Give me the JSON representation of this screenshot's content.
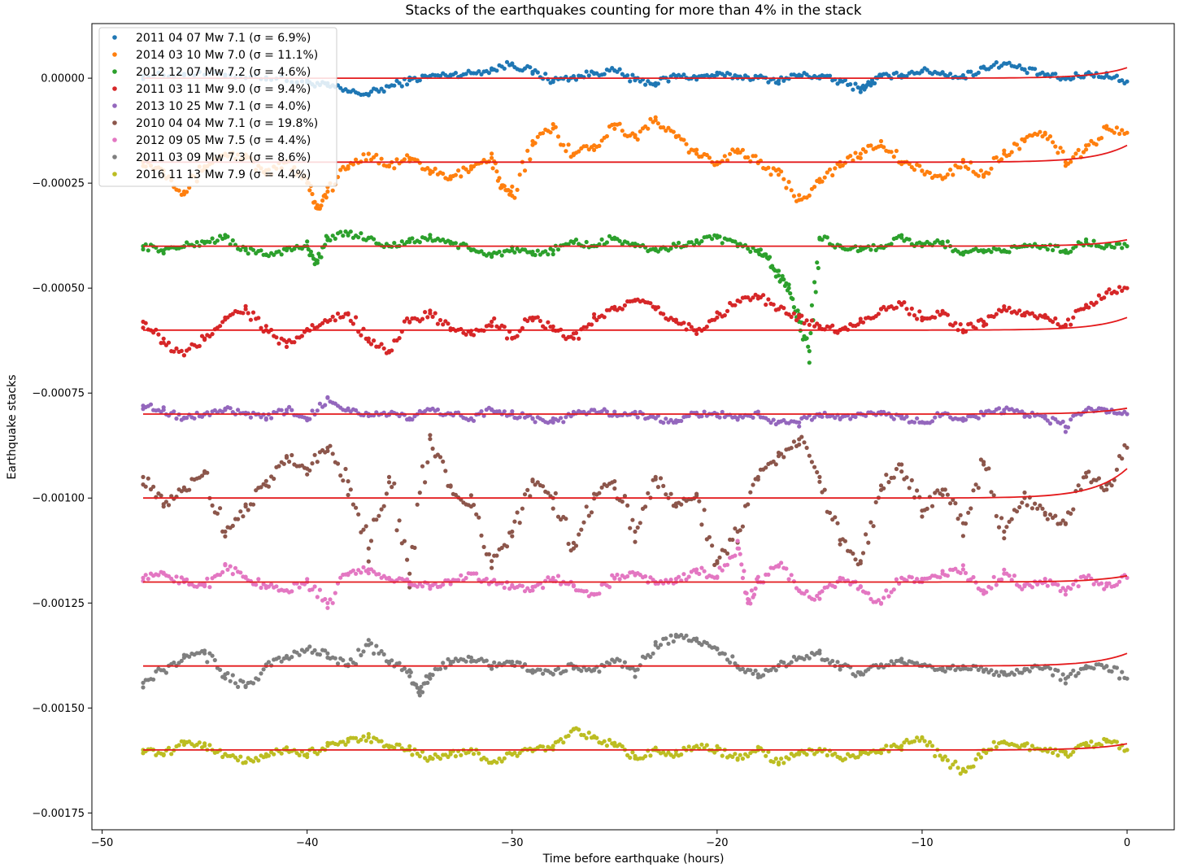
{
  "chart_data": {
    "type": "scatter",
    "title": "Stacks of the earthquakes counting for more than 4% in the stack",
    "xlabel": "Time before earthquake (hours)",
    "ylabel": "Earthquake stacks",
    "xlim": [
      -50.5,
      2.3
    ],
    "ylim": [
      -0.00179,
      0.00013
    ],
    "x_ticks": [
      -50,
      -40,
      -30,
      -20,
      -10,
      0
    ],
    "x_tick_labels": [
      "−50",
      "−40",
      "−30",
      "−20",
      "−10",
      "0"
    ],
    "y_ticks": [
      0,
      -0.00025,
      -0.0005,
      -0.00075,
      -0.001,
      -0.00125,
      -0.0015,
      -0.00175
    ],
    "y_tick_labels": [
      "0.00000",
      "−0.00025",
      "−0.00050",
      "−0.00075",
      "−0.00100",
      "−0.00125",
      "−0.00150",
      "−0.00175"
    ],
    "grid": false,
    "legend_position": "top-left",
    "fit_color": "#e41a1c",
    "series": [
      {
        "name": "2011 04 07 Mw 7.1 (σ = 6.9%)",
        "color": "#1f77b4",
        "baseline": 0,
        "fit_end": 2.5e-05,
        "x": [
          -48,
          -46,
          -44,
          -42,
          -40,
          -39,
          -38,
          -37,
          -36,
          -35,
          -34,
          -33,
          -32,
          -31,
          -30,
          -29,
          -28,
          -27,
          -26,
          -25,
          -24,
          -23,
          -22,
          -21,
          -20,
          -19,
          -18,
          -17,
          -16,
          -15,
          -14,
          -13,
          -12.5,
          -12,
          -11,
          -10,
          -9,
          -8,
          -7,
          -6,
          -5,
          -4,
          -3,
          -2,
          -1,
          0
        ],
        "y": [
          5e-06,
          1e-05,
          8e-06,
          2e-06,
          -1e-05,
          -1.8e-05,
          -3.2e-05,
          -3.8e-05,
          -2e-05,
          -5e-06,
          5e-06,
          8e-06,
          1.2e-05,
          2e-05,
          3.5e-05,
          1.5e-05,
          -5e-06,
          2e-06,
          1.2e-05,
          1.8e-05,
          -5e-06,
          -1.2e-05,
          5e-06,
          2e-06,
          8e-06,
          4e-06,
          1e-06,
          -6e-06,
          8e-06,
          4e-06,
          -8e-06,
          -2.5e-05,
          -1.2e-05,
          4e-06,
          8e-06,
          1.8e-05,
          1.2e-05,
          2e-06,
          2.5e-05,
          3.5e-05,
          2e-05,
          8e-06,
          -2e-06,
          1e-05,
          6e-06,
          -8e-06
        ]
      },
      {
        "name": "2014 03 10 Mw 7.0 (σ = 11.1%)",
        "color": "#ff7f0e",
        "baseline": -0.0002,
        "fit_end": -0.00016,
        "x": [
          -48,
          -47,
          -46,
          -45,
          -44,
          -43,
          -42,
          -41,
          -40,
          -39.5,
          -39,
          -38,
          -37,
          -36,
          -35,
          -34,
          -33,
          -32,
          -31,
          -30.5,
          -30,
          -29,
          -28,
          -27,
          -26,
          -25,
          -24,
          -23,
          -22,
          -21,
          -20,
          -19,
          -18,
          -17,
          -16,
          -15,
          -14,
          -13,
          -12,
          -11,
          -10,
          -9,
          -8,
          -7,
          -6,
          -5,
          -4,
          -3,
          -2,
          -1,
          0
        ],
        "y": [
          -0.0002,
          -0.00022,
          -0.00027,
          -0.00021,
          -0.00018,
          -0.00019,
          -0.00023,
          -0.0002,
          -0.00024,
          -0.00031,
          -0.00027,
          -0.00021,
          -0.00018,
          -0.00021,
          -0.00019,
          -0.00022,
          -0.00024,
          -0.00021,
          -0.00019,
          -0.00026,
          -0.00028,
          -0.00015,
          -0.00012,
          -0.00018,
          -0.00016,
          -0.00011,
          -0.00014,
          -0.0001,
          -0.00014,
          -0.00018,
          -0.0002,
          -0.00017,
          -0.0002,
          -0.00023,
          -0.00029,
          -0.00024,
          -0.00021,
          -0.00018,
          -0.00015,
          -0.0002,
          -0.00022,
          -0.00024,
          -0.0002,
          -0.00023,
          -0.00018,
          -0.00015,
          -0.00013,
          -0.0002,
          -0.00017,
          -0.00012,
          -0.00013
        ]
      },
      {
        "name": "2012 12 07 Mw 7.2 (σ = 4.6%)",
        "color": "#2ca02c",
        "baseline": -0.0004,
        "fit_end": -0.000385,
        "x": [
          -48,
          -47,
          -46,
          -45,
          -44,
          -43,
          -42,
          -41,
          -40,
          -39.5,
          -39,
          -38,
          -37,
          -36,
          -35,
          -34,
          -33,
          -32,
          -31,
          -30,
          -29,
          -28,
          -27,
          -26,
          -25,
          -24,
          -23,
          -22,
          -21,
          -20,
          -19,
          -18,
          -17.5,
          -17,
          -16.5,
          -16,
          -15.5,
          -15,
          -14,
          -13,
          -12,
          -11,
          -10,
          -9,
          -8,
          -7,
          -6,
          -5,
          -4,
          -3,
          -2,
          -1,
          0
        ],
        "y": [
          -0.0004,
          -0.00041,
          -0.0004,
          -0.00039,
          -0.00038,
          -0.00041,
          -0.00042,
          -0.00041,
          -0.0004,
          -0.00044,
          -0.00038,
          -0.00037,
          -0.00038,
          -0.0004,
          -0.00039,
          -0.00038,
          -0.00039,
          -0.00041,
          -0.00042,
          -0.00041,
          -0.00042,
          -0.00041,
          -0.00039,
          -0.0004,
          -0.00038,
          -0.0004,
          -0.00041,
          -0.0004,
          -0.00039,
          -0.00038,
          -0.0004,
          -0.00041,
          -0.00043,
          -0.00047,
          -0.0005,
          -0.00058,
          -0.00065,
          -0.00038,
          -0.0004,
          -0.00041,
          -0.0004,
          -0.00038,
          -0.0004,
          -0.00039,
          -0.00042,
          -0.00041,
          -0.00041,
          -0.0004,
          -0.0004,
          -0.00041,
          -0.00039,
          -0.0004,
          -0.0004
        ]
      },
      {
        "name": "2011 03 11 Mw 9.0 (σ = 9.4%)",
        "color": "#d62728",
        "baseline": -0.0006,
        "fit_end": -0.00057,
        "x": [
          -48,
          -47,
          -46,
          -45,
          -44,
          -43,
          -42,
          -41,
          -40,
          -39,
          -38,
          -37,
          -36,
          -35,
          -34,
          -33,
          -32,
          -31,
          -30,
          -29,
          -28,
          -27,
          -26,
          -25,
          -24,
          -23,
          -22,
          -21,
          -20,
          -19,
          -18,
          -17,
          -16,
          -15,
          -14,
          -13,
          -12,
          -11,
          -10,
          -9,
          -8,
          -7,
          -6,
          -5,
          -4,
          -3,
          -2,
          -1,
          0
        ],
        "y": [
          -0.00058,
          -0.00063,
          -0.00066,
          -0.00062,
          -0.00057,
          -0.00055,
          -0.0006,
          -0.00064,
          -0.0006,
          -0.00058,
          -0.00056,
          -0.00062,
          -0.00065,
          -0.00058,
          -0.00056,
          -0.0006,
          -0.00061,
          -0.00058,
          -0.00062,
          -0.00057,
          -0.0006,
          -0.00062,
          -0.00057,
          -0.00055,
          -0.00053,
          -0.00055,
          -0.00058,
          -0.0006,
          -0.00057,
          -0.00053,
          -0.00052,
          -0.00055,
          -0.00057,
          -0.00059,
          -0.0006,
          -0.00058,
          -0.00055,
          -0.00054,
          -0.00057,
          -0.00056,
          -0.0006,
          -0.00058,
          -0.00055,
          -0.00056,
          -0.00057,
          -0.00059,
          -0.00054,
          -0.00051,
          -0.0005
        ]
      },
      {
        "name": "2013 10 25 Mw 7.1 (σ = 4.0%)",
        "color": "#9467bd",
        "baseline": -0.0008,
        "fit_end": -0.000786,
        "x": [
          -48,
          -47,
          -46,
          -45,
          -44,
          -43,
          -42,
          -41,
          -40,
          -39,
          -38,
          -37,
          -36,
          -35,
          -34,
          -33,
          -32,
          -31,
          -30,
          -29,
          -28,
          -27,
          -26,
          -25,
          -24,
          -23,
          -22,
          -21,
          -20,
          -19,
          -18,
          -17,
          -16,
          -15,
          -14,
          -13,
          -12,
          -11,
          -10,
          -9,
          -8,
          -7,
          -6,
          -5,
          -4,
          -3,
          -2,
          -1,
          0
        ],
        "y": [
          -0.00078,
          -0.00079,
          -0.00081,
          -0.0008,
          -0.00079,
          -0.0008,
          -0.00081,
          -0.00079,
          -0.00081,
          -0.00076,
          -0.00079,
          -0.0008,
          -0.0008,
          -0.00081,
          -0.00079,
          -0.0008,
          -0.00081,
          -0.00079,
          -0.0008,
          -0.00081,
          -0.00082,
          -0.0008,
          -0.00079,
          -0.0008,
          -0.0008,
          -0.00081,
          -0.00082,
          -0.0008,
          -0.0008,
          -0.00081,
          -0.0008,
          -0.00082,
          -0.00082,
          -0.0008,
          -0.00081,
          -0.0008,
          -0.0008,
          -0.00081,
          -0.00082,
          -0.0008,
          -0.00081,
          -0.0008,
          -0.00079,
          -0.0008,
          -0.00081,
          -0.00083,
          -0.00079,
          -0.00079,
          -0.0008
        ]
      },
      {
        "name": "2010 04 04 Mw 7.1 (σ = 19.8%)",
        "color": "#8c564b",
        "baseline": -0.001,
        "fit_end": -0.00093,
        "x": [
          -48,
          -47,
          -46,
          -45,
          -44,
          -43,
          -42,
          -41,
          -40,
          -39,
          -38,
          -37,
          -36,
          -35,
          -34,
          -33,
          -32,
          -31,
          -30,
          -29,
          -28,
          -27,
          -26,
          -25,
          -24,
          -23,
          -22,
          -21,
          -20,
          -19,
          -18,
          -17,
          -16,
          -15,
          -14,
          -13,
          -12,
          -11,
          -10,
          -9,
          -8,
          -7,
          -6,
          -5,
          -4,
          -3,
          -2,
          -1,
          0
        ],
        "y": [
          -0.00095,
          -0.00102,
          -0.00098,
          -0.00094,
          -0.00108,
          -0.00102,
          -0.00097,
          -0.0009,
          -0.00093,
          -0.00088,
          -0.00096,
          -0.00112,
          -0.00095,
          -0.00118,
          -0.00085,
          -0.00097,
          -0.00102,
          -0.00115,
          -0.00108,
          -0.00096,
          -0.001,
          -0.00112,
          -0.00099,
          -0.00096,
          -0.00108,
          -0.00095,
          -0.00102,
          -0.00099,
          -0.00115,
          -0.00108,
          -0.00095,
          -0.0009,
          -0.00086,
          -0.00095,
          -0.0011,
          -0.00115,
          -0.00097,
          -0.00092,
          -0.00103,
          -0.00098,
          -0.00106,
          -0.00092,
          -0.00108,
          -0.001,
          -0.00104,
          -0.00106,
          -0.00094,
          -0.00098,
          -0.00088
        ]
      },
      {
        "name": "2012 09 05 Mw 7.5 (σ = 4.4%)",
        "color": "#e377c2",
        "baseline": -0.0012,
        "fit_end": -0.001185,
        "x": [
          -48,
          -47,
          -46,
          -45,
          -44,
          -43,
          -42,
          -41,
          -40,
          -39,
          -38,
          -37,
          -36,
          -35,
          -34,
          -33,
          -32,
          -31,
          -30,
          -29,
          -28,
          -27,
          -26,
          -25,
          -24,
          -23,
          -22,
          -21,
          -20,
          -19,
          -18.5,
          -18,
          -17,
          -16,
          -15,
          -14,
          -13,
          -12,
          -11,
          -10,
          -9,
          -8,
          -7,
          -6,
          -5,
          -4,
          -3,
          -2,
          -1,
          0
        ],
        "y": [
          -0.00119,
          -0.00118,
          -0.0012,
          -0.00121,
          -0.00116,
          -0.00119,
          -0.00121,
          -0.00122,
          -0.0012,
          -0.00125,
          -0.00118,
          -0.00117,
          -0.00119,
          -0.0012,
          -0.00121,
          -0.0012,
          -0.00118,
          -0.0012,
          -0.00121,
          -0.00122,
          -0.00119,
          -0.00121,
          -0.00123,
          -0.00119,
          -0.00118,
          -0.0012,
          -0.0012,
          -0.00117,
          -0.00119,
          -0.00112,
          -0.00125,
          -0.0012,
          -0.00116,
          -0.00122,
          -0.00124,
          -0.00119,
          -0.00121,
          -0.00125,
          -0.00119,
          -0.0012,
          -0.00118,
          -0.00117,
          -0.00122,
          -0.00118,
          -0.00121,
          -0.0012,
          -0.00122,
          -0.00119,
          -0.00121,
          -0.00119
        ]
      },
      {
        "name": "2011 03 09 Mw 7.3 (σ = 8.6%)",
        "color": "#7f7f7f",
        "baseline": -0.0014,
        "fit_end": -0.00137,
        "x": [
          -48,
          -47,
          -46,
          -45,
          -44,
          -43,
          -42,
          -41,
          -40,
          -39,
          -38,
          -37,
          -36,
          -35,
          -34.5,
          -34,
          -33,
          -32,
          -31,
          -30,
          -29,
          -28,
          -27,
          -26,
          -25,
          -24,
          -23,
          -22,
          -21,
          -20,
          -19,
          -18,
          -17,
          -16,
          -15,
          -14,
          -13,
          -12,
          -11,
          -10,
          -9,
          -8,
          -7,
          -6,
          -5,
          -4,
          -3,
          -2,
          -1,
          0
        ],
        "y": [
          -0.00144,
          -0.00141,
          -0.00138,
          -0.00137,
          -0.00142,
          -0.00145,
          -0.0014,
          -0.00138,
          -0.00136,
          -0.00137,
          -0.0014,
          -0.00135,
          -0.00139,
          -0.00141,
          -0.00147,
          -0.00142,
          -0.00139,
          -0.00138,
          -0.0014,
          -0.00139,
          -0.00141,
          -0.00142,
          -0.0014,
          -0.00141,
          -0.00139,
          -0.00141,
          -0.00135,
          -0.00133,
          -0.00134,
          -0.00136,
          -0.0014,
          -0.00142,
          -0.0014,
          -0.00138,
          -0.00137,
          -0.0014,
          -0.00142,
          -0.0014,
          -0.00139,
          -0.0014,
          -0.00141,
          -0.0014,
          -0.00141,
          -0.00142,
          -0.00141,
          -0.0014,
          -0.00143,
          -0.0014,
          -0.0014,
          -0.00143
        ]
      },
      {
        "name": "2016 11 13 Mw 7.9 (σ = 4.4%)",
        "color": "#bcbd22",
        "baseline": -0.0016,
        "fit_end": -0.001585,
        "x": [
          -48,
          -47,
          -46,
          -45,
          -44,
          -43,
          -42,
          -41,
          -40,
          -39,
          -38,
          -37,
          -36,
          -35,
          -34,
          -33,
          -32,
          -31,
          -30,
          -29,
          -28,
          -27,
          -26,
          -25,
          -24,
          -23,
          -22,
          -21,
          -20,
          -19,
          -18,
          -17,
          -16,
          -15,
          -14,
          -13,
          -12,
          -11,
          -10,
          -9,
          -8,
          -7,
          -6,
          -5,
          -4,
          -3,
          -2,
          -1,
          0
        ],
        "y": [
          -0.0016,
          -0.00161,
          -0.00158,
          -0.00159,
          -0.00161,
          -0.00163,
          -0.00161,
          -0.0016,
          -0.00161,
          -0.00159,
          -0.00158,
          -0.00157,
          -0.00159,
          -0.0016,
          -0.00162,
          -0.00161,
          -0.0016,
          -0.00163,
          -0.00161,
          -0.0016,
          -0.00159,
          -0.00155,
          -0.00157,
          -0.00159,
          -0.00162,
          -0.0016,
          -0.00161,
          -0.00159,
          -0.0016,
          -0.00162,
          -0.0016,
          -0.00163,
          -0.00161,
          -0.0016,
          -0.00162,
          -0.00161,
          -0.0016,
          -0.00159,
          -0.00157,
          -0.00162,
          -0.00165,
          -0.0016,
          -0.00158,
          -0.00159,
          -0.0016,
          -0.00161,
          -0.00159,
          -0.00158,
          -0.0016
        ]
      }
    ]
  }
}
